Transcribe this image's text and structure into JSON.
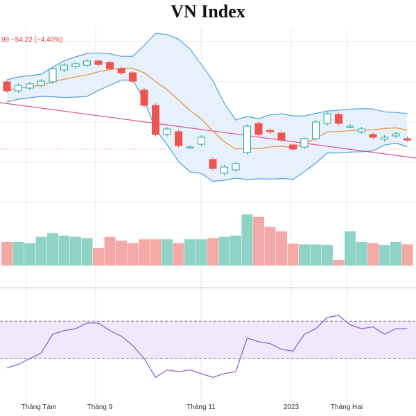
{
  "title": "VN Index",
  "ohlc_text": "99  −54.22  (−4.40%)",
  "colors": {
    "up": "#26a69a",
    "down": "#ef5350",
    "up_volume": "#8fd3c7",
    "down_volume": "#f5a9a6",
    "ma": "#f0913f",
    "band": "#4f9fe0",
    "band_fill": "#e6f1fb",
    "trendline": "#e0508a",
    "rsi_line": "#8e63cf",
    "rsi_fill": "#efe9fb",
    "grid": "#e9e9e9"
  },
  "chart_data": {
    "type": "candlestick",
    "title": "VN Index",
    "x_ticks": [
      "Tháng Tám",
      "Tháng 9",
      "Tháng 11",
      "2023",
      "Tháng Hai"
    ],
    "price_y_range": [
      885,
      1230
    ],
    "candles": [
      {
        "o": 1152,
        "c": 1139
      },
      {
        "o": 1139,
        "c": 1147
      },
      {
        "o": 1143,
        "c": 1149
      },
      {
        "o": 1147,
        "c": 1153
      },
      {
        "o": 1152,
        "c": 1171
      },
      {
        "o": 1169,
        "c": 1176
      },
      {
        "o": 1174,
        "c": 1178
      },
      {
        "o": 1176,
        "c": 1182
      },
      {
        "o": 1182,
        "c": 1177
      },
      {
        "o": 1180,
        "c": 1171
      },
      {
        "o": 1171,
        "c": 1165
      },
      {
        "o": 1165,
        "c": 1153
      },
      {
        "o": 1140,
        "c": 1118
      },
      {
        "o": 1118,
        "c": 1076
      },
      {
        "o": 1076,
        "c": 1084
      },
      {
        "o": 1080,
        "c": 1060
      },
      {
        "o": 1058,
        "c": 1058
      },
      {
        "o": 1062,
        "c": 1072
      },
      {
        "o": 1040,
        "c": 1027
      },
      {
        "o": 1020,
        "c": 1029
      },
      {
        "o": 1025,
        "c": 1034
      },
      {
        "o": 1050,
        "c": 1088
      },
      {
        "o": 1092,
        "c": 1076
      },
      {
        "o": 1082,
        "c": 1080
      },
      {
        "o": 1078,
        "c": 1068
      },
      {
        "o": 1061,
        "c": 1055
      },
      {
        "o": 1058,
        "c": 1070
      },
      {
        "o": 1070,
        "c": 1094
      },
      {
        "o": 1092,
        "c": 1106
      },
      {
        "o": 1105,
        "c": 1092
      },
      {
        "o": 1088,
        "c": 1088
      },
      {
        "o": 1080,
        "c": 1084
      },
      {
        "o": 1076,
        "c": 1072
      },
      {
        "o": 1069,
        "c": 1072
      },
      {
        "o": 1074,
        "c": 1077
      },
      {
        "o": 1070,
        "c": 1068
      }
    ],
    "volume": [
      0.38,
      0.38,
      0.36,
      0.46,
      0.52,
      0.48,
      0.46,
      0.44,
      0.28,
      0.46,
      0.4,
      0.36,
      0.42,
      0.42,
      0.42,
      0.36,
      0.42,
      0.42,
      0.44,
      0.46,
      0.48,
      0.82,
      0.78,
      0.62,
      0.55,
      0.35,
      0.34,
      0.34,
      0.33,
      0.09,
      0.55,
      0.38,
      0.36,
      0.33,
      0.38,
      0.34
    ],
    "rsi": [
      20,
      24,
      30,
      36,
      56,
      60,
      62,
      68,
      68,
      60,
      54,
      44,
      30,
      10,
      18,
      16,
      18,
      14,
      10,
      14,
      16,
      52,
      48,
      46,
      40,
      38,
      56,
      62,
      74,
      76,
      66,
      62,
      64,
      56,
      62,
      62
    ],
    "rsi_y_range": [
      -15,
      105
    ],
    "rsi_levels": [
      70,
      30
    ]
  }
}
